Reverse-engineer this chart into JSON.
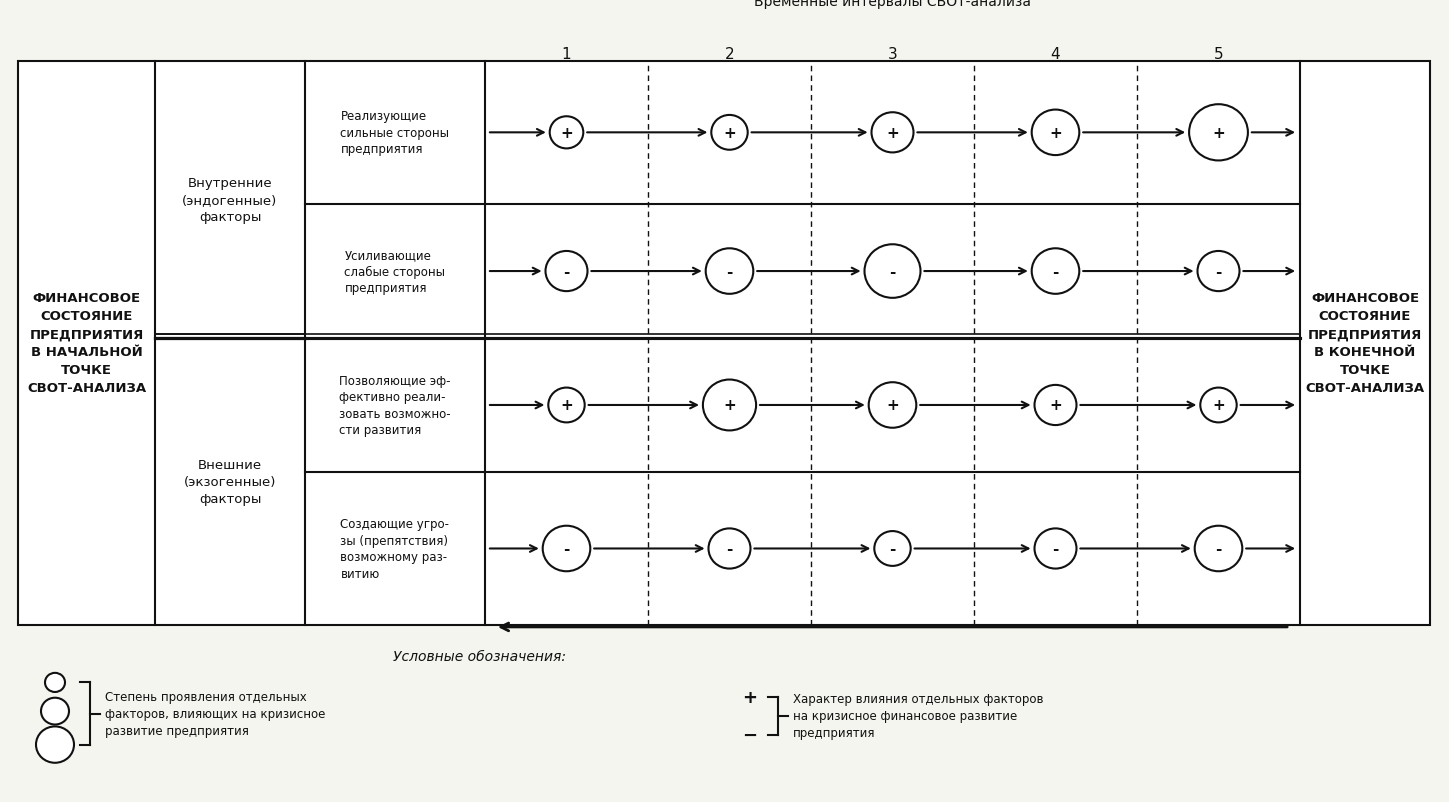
{
  "title_top": "Временные интервалы СВОТ-анализа",
  "left_box_title": "ФИНАНСОВОЕ\nСОСТОЯНИЕ\nПРЕДПРИЯТИЯ\nВ НАЧАЛЬНОЙ\nТОЧКЕ\nСВОТ-АНАЛИЗА",
  "right_box_title": "ФИНАНСОВОЕ\nСОСТОЯНИЕ\nПРЕДПРИЯТИЯ\nВ КОНЕЧНОЙ\nТОЧКЕ\nСВОТ-АНАЛИЗА",
  "col2_label1": "Внутренние\n(эндогенные)\nфакторы",
  "col2_label2": "Внешние\n(экзогенные)\nфакторы",
  "row_labels": [
    "Реализующие\nсильные стороны\nпредприятия",
    "Усиливающие\nслабые стороны\nпредприятия",
    "Позволяющие эф-\nфективно реали-\nзовать возможно-\nсти развития",
    "Создающие угро-\nзы (препятствия)\nвозможному раз-\nвитию"
  ],
  "row_signs": [
    "+",
    "-",
    "+",
    "-"
  ],
  "interval_labels": [
    "1",
    "2",
    "3",
    "4",
    "5"
  ],
  "circle_sizes_row0": [
    0.6,
    0.65,
    0.75,
    0.85,
    1.05
  ],
  "circle_sizes_row1": [
    0.75,
    0.85,
    1.0,
    0.85,
    0.75
  ],
  "circle_sizes_row2": [
    0.65,
    0.95,
    0.85,
    0.75,
    0.65
  ],
  "circle_sizes_row3": [
    0.85,
    0.75,
    0.65,
    0.75,
    0.85
  ],
  "legend_title": "Условные обозначения:",
  "legend_text1": "Степень проявления отдельных\nфакторов, влияющих на кризисное\nразвитие предприятия",
  "legend_text2": "Характер влияния отдельных факторов\nна кризисное финансовое развитие\nпредприятия",
  "bg_color": "#f5f5f0",
  "box_color": "#ffffff",
  "line_color": "#111111",
  "text_color": "#111111"
}
